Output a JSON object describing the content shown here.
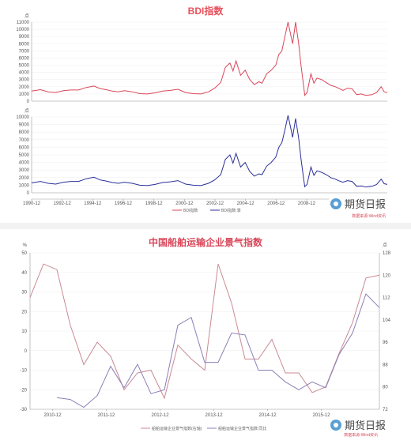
{
  "colors": {
    "red": "#d9475a",
    "blue": "#2b2f9a",
    "pink": "#c98a94",
    "purple": "#8a7fb8",
    "grid": "#eeeeee",
    "axis": "#9a9a9a"
  },
  "watermark": {
    "text": "期货日报",
    "icon": "wechat-logo-icon"
  },
  "chart_data": [
    {
      "type": "line",
      "title": "BDI指数",
      "panels": [
        {
          "position": "upper",
          "series_color": "red",
          "ylim": [
            0,
            11000
          ],
          "yticks": [
            0,
            1000,
            2000,
            3000,
            4000,
            5000,
            6000,
            7000,
            8000,
            9000,
            10000,
            11000
          ],
          "unit_label": "点"
        },
        {
          "position": "lower",
          "series_color": "blue",
          "ylim": [
            0,
            10000
          ],
          "yticks": [
            0,
            1000,
            2000,
            3000,
            4000,
            5000,
            6000,
            7000,
            8000,
            9000,
            10000
          ],
          "unit_label": "点"
        }
      ],
      "x_ticks": [
        "1990-12",
        "1992-12",
        "1994-12",
        "1996-12",
        "1998-12",
        "2000-12",
        "2002-12",
        "2004-12",
        "2006-12",
        "2008-12",
        "2010-12",
        "2012-12"
      ],
      "legend": [
        "BDI指数",
        "BDI指数:季"
      ],
      "source": "数据来源:Wind资讯",
      "x": [
        1990.92,
        1991.5,
        1992.0,
        1992.5,
        1993.0,
        1993.5,
        1994.0,
        1994.5,
        1995.0,
        1995.4,
        1995.8,
        1996.2,
        1996.6,
        1997.0,
        1997.5,
        1998.0,
        1998.5,
        1999.0,
        1999.5,
        2000.0,
        2000.5,
        2001.0,
        2001.5,
        2002.0,
        2002.5,
        2002.9,
        2003.3,
        2003.6,
        2003.9,
        2004.1,
        2004.3,
        2004.6,
        2004.9,
        2005.2,
        2005.5,
        2005.8,
        2006.0,
        2006.3,
        2006.6,
        2006.9,
        2007.1,
        2007.3,
        2007.5,
        2007.7,
        2007.85,
        2008.0,
        2008.2,
        2008.4,
        2008.55,
        2008.7,
        2008.8,
        2008.95,
        2009.2,
        2009.4,
        2009.6,
        2009.9,
        2010.2,
        2010.5,
        2010.8,
        2011.0,
        2011.3,
        2011.6,
        2011.9,
        2012.2,
        2012.5,
        2012.8,
        2013.2,
        2013.5,
        2013.8,
        2014.0,
        2014.2
      ],
      "series": [
        {
          "name": "BDI指数",
          "values": [
            1400,
            1600,
            1300,
            1200,
            1450,
            1550,
            1550,
            1900,
            2100,
            1750,
            1600,
            1400,
            1300,
            1450,
            1300,
            1050,
            1000,
            1150,
            1400,
            1500,
            1650,
            1200,
            1050,
            1000,
            1300,
            1800,
            2600,
            4700,
            5300,
            4200,
            5600,
            3600,
            4300,
            3000,
            2300,
            2700,
            2500,
            3800,
            4300,
            5000,
            6500,
            7000,
            9000,
            11000,
            9500,
            8000,
            11000,
            8000,
            5000,
            2500,
            800,
            1200,
            3800,
            2500,
            3200,
            3000,
            2600,
            2200,
            2000,
            1800,
            1500,
            1800,
            1700,
            900,
            1000,
            800,
            900,
            1200,
            2000,
            1300,
            1200
          ]
        },
        {
          "name": "BDI指数:季",
          "values": [
            1300,
            1500,
            1250,
            1150,
            1400,
            1500,
            1500,
            1850,
            2050,
            1700,
            1550,
            1350,
            1250,
            1400,
            1250,
            1000,
            950,
            1100,
            1350,
            1450,
            1600,
            1150,
            1000,
            950,
            1250,
            1700,
            2400,
            4400,
            5000,
            3900,
            5200,
            3400,
            4000,
            2800,
            2200,
            2500,
            2400,
            3500,
            4000,
            4700,
            6000,
            6600,
            8300,
            10200,
            8800,
            7300,
            9800,
            7200,
            4500,
            2200,
            800,
            1100,
            3400,
            2300,
            2900,
            2700,
            2400,
            2000,
            1800,
            1600,
            1400,
            1600,
            1500,
            850,
            900,
            750,
            850,
            1100,
            1800,
            1200,
            1100
          ]
        }
      ]
    },
    {
      "type": "line",
      "title": "中国船舶运输企业景气指数",
      "left_unit": "%",
      "right_unit": "点",
      "ylim_left": [
        -30,
        50
      ],
      "yticks_left": [
        -30,
        -20,
        -10,
        0,
        10,
        20,
        30,
        40,
        50
      ],
      "ylim_right": [
        72,
        128
      ],
      "yticks_right": [
        72,
        80,
        88,
        96,
        104,
        112,
        120,
        128
      ],
      "x_ticks": [
        "2010-12",
        "2011-12",
        "2012-12",
        "2013-12",
        "2014-12",
        "2015-12"
      ],
      "legend": [
        "船舶运输企业景气指数(右轴)",
        "船舶运输企业景气指数:同比"
      ],
      "source": "数据来源:Wind资讯",
      "series": [
        {
          "name": "船舶运输企业景气指数(右轴)",
          "axis": "right",
          "color": "pink",
          "x": [
            2010.5,
            2010.75,
            2011.0,
            2011.25,
            2011.5,
            2011.75,
            2012.0,
            2012.25,
            2012.5,
            2012.75,
            2013.0,
            2013.25,
            2013.5,
            2013.75,
            2014.0,
            2014.25,
            2014.5,
            2014.75,
            2015.0,
            2015.25,
            2015.5,
            2015.75,
            2016.0,
            2016.25,
            2016.5,
            2016.75,
            2017.0
          ],
          "values": [
            112,
            124,
            122,
            102,
            88,
            96,
            91,
            79,
            85,
            86,
            76,
            95,
            90,
            86,
            124,
            110,
            90,
            90,
            97,
            85,
            85,
            78,
            80,
            92,
            103,
            119,
            120
          ]
        },
        {
          "name": "船舶运输企业景气指数:同比",
          "axis": "left",
          "color": "purple",
          "x": [
            2011.0,
            2011.25,
            2011.5,
            2011.75,
            2012.0,
            2012.25,
            2012.5,
            2012.75,
            2013.0,
            2013.25,
            2013.5,
            2013.75,
            2014.0,
            2014.25,
            2014.5,
            2014.75,
            2015.0,
            2015.25,
            2015.5,
            2015.75,
            2016.0,
            2016.25,
            2016.5,
            2016.75,
            2017.0
          ],
          "values": [
            -24,
            -25,
            -29,
            -23,
            -8,
            -19,
            -7,
            -22,
            -20,
            13,
            17,
            -6,
            -6,
            9,
            8,
            -10,
            -10,
            -16,
            -20,
            -16,
            -19,
            -2,
            9,
            29,
            22
          ]
        }
      ]
    }
  ]
}
